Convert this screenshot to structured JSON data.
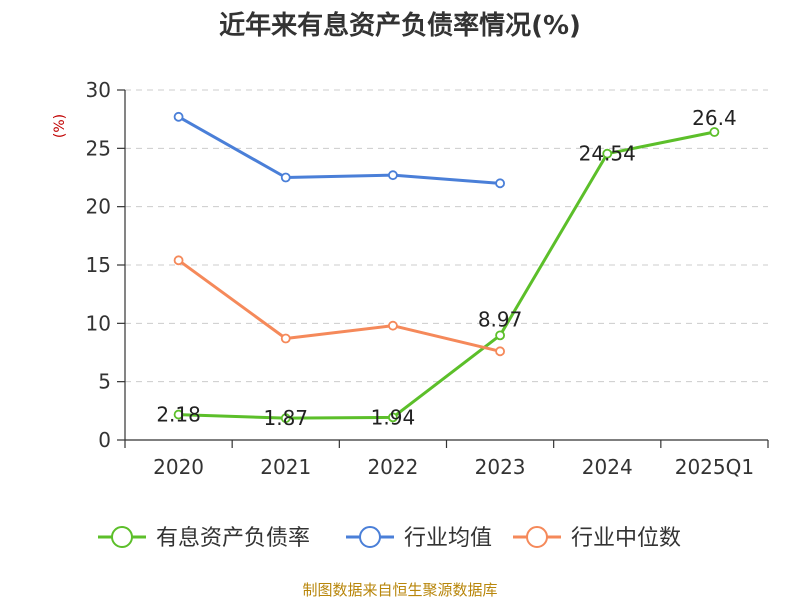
{
  "chart_data": {
    "type": "line",
    "title": "近年来有息资产负债率情况(%)",
    "ylabel": "(%)",
    "xlabel": "",
    "categories": [
      "2020",
      "2021",
      "2022",
      "2023",
      "2024",
      "2025Q1"
    ],
    "ylim": [
      0,
      30
    ],
    "yticks": [
      0,
      5,
      10,
      15,
      20,
      25,
      30
    ],
    "grid": true,
    "legend_position": "bottom",
    "series": [
      {
        "name": "有息资产负债率",
        "color": "#5cbf2a",
        "values": [
          2.18,
          1.87,
          1.94,
          8.97,
          24.54,
          26.4
        ],
        "labels": [
          "2.18",
          "1.87",
          "1.94",
          "8.97",
          "24.54",
          "26.4"
        ]
      },
      {
        "name": "行业均值",
        "color": "#4a7fd8",
        "values": [
          27.7,
          22.5,
          22.7,
          22.0,
          null,
          null
        ]
      },
      {
        "name": "行业中位数",
        "color": "#f5895a",
        "values": [
          15.4,
          8.7,
          9.8,
          7.6,
          null,
          null
        ]
      }
    ]
  },
  "source": "制图数据来自恒生聚源数据库"
}
